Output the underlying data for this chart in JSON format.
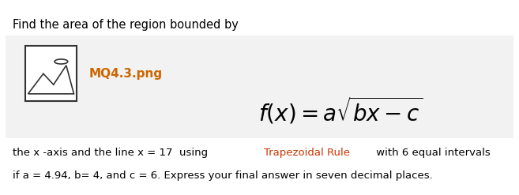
{
  "title_text": "Find the area of the region bounded by",
  "title_fontsize": 10.5,
  "image_label": "MQ4.3.png",
  "formula_display": "$f(x) = a\\sqrt{bx - c}$",
  "body_line1_normal1": "the x -axis and the line x = 17  using ",
  "body_line1_colored": "Trapezoidal Rule",
  "body_line1_normal2": " with 6 equal intervals",
  "body_line2": "if a = 4.94, b= 4, and c = 6. Express your final answer in seven decimal places.",
  "dot": ".",
  "colored_text_color": "#CC3300",
  "image_label_color": "#CC6600",
  "background_color": "#ffffff",
  "box_bg_color": "#f2f2f2",
  "body_fontsize": 9.5,
  "formula_fontsize": 20,
  "icon_color": "#333333"
}
